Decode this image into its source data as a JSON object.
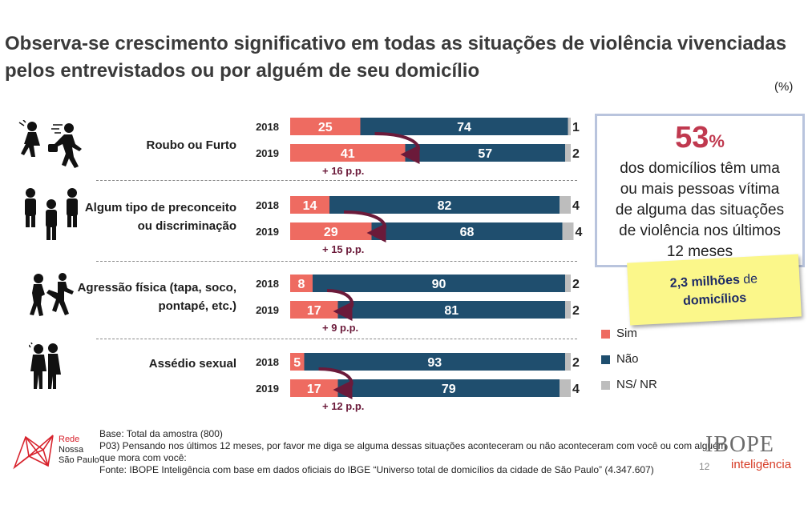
{
  "title_lines": [
    "Observa-se crescimento significativo em todas as situações de violência vivenciadas",
    "pelos entrevistados ou por alguém de seu domicílio"
  ],
  "unit": "(%)",
  "categories": [
    {
      "label_lines": [
        "Roubo ou Furto"
      ],
      "icon": "theft-icon"
    },
    {
      "label_lines": [
        "Algum tipo de preconceito",
        "ou discriminação"
      ],
      "icon": "people-group-icon"
    },
    {
      "label_lines": [
        "Agressão física (tapa, soco,",
        "pontapé, etc.)"
      ],
      "icon": "fight-icon"
    },
    {
      "label_lines": [
        "Assédio sexual"
      ],
      "icon": "harassment-icon"
    }
  ],
  "chart_data": {
    "type": "bar",
    "orientation": "horizontal",
    "stacked": true,
    "percent_scale": [
      0,
      100
    ],
    "colors": {
      "sim": "#ee6b61",
      "nao": "#1f4e6e",
      "ns": "#bdbdbd",
      "delta_arrow": "#6b1a3a"
    },
    "series_names": [
      "Sim",
      "Não",
      "NS/ NR"
    ],
    "groups": [
      {
        "category": "Roubo ou Furto",
        "rows": [
          {
            "year": "2018",
            "sim": 25,
            "nao": 74,
            "ns": 1
          },
          {
            "year": "2019",
            "sim": 41,
            "nao": 57,
            "ns": 2
          }
        ],
        "delta": "+ 16 p.p."
      },
      {
        "category": "Algum tipo de preconceito ou discriminação",
        "rows": [
          {
            "year": "2018",
            "sim": 14,
            "nao": 82,
            "ns": 4
          },
          {
            "year": "2019",
            "sim": 29,
            "nao": 68,
            "ns": 4
          }
        ],
        "delta": "+ 15 p.p."
      },
      {
        "category": "Agressão física (tapa, soco, pontapé, etc.)",
        "rows": [
          {
            "year": "2018",
            "sim": 8,
            "nao": 90,
            "ns": 2
          },
          {
            "year": "2019",
            "sim": 17,
            "nao": 81,
            "ns": 2
          }
        ],
        "delta": "+ 9 p.p."
      },
      {
        "category": "Assédio sexual",
        "rows": [
          {
            "year": "2018",
            "sim": 5,
            "nao": 93,
            "ns": 2
          },
          {
            "year": "2019",
            "sim": 17,
            "nao": 79,
            "ns": 4
          }
        ],
        "delta": "+ 12 p.p."
      }
    ]
  },
  "legend": [
    {
      "label": "Sim",
      "color": "#ee6b61"
    },
    {
      "label": "Não",
      "color": "#1f4e6e"
    },
    {
      "label": "NS/ NR",
      "color": "#bdbdbd"
    }
  ],
  "stat_box": {
    "number": "53",
    "percent_sign": "%",
    "text_lines": [
      "dos domicílios têm uma",
      "ou mais pessoas vítima",
      "de alguma das situações",
      "de violência nos últimos",
      "12 meses"
    ]
  },
  "note": {
    "bold": "2,3 milhões",
    "normal": " de",
    "bold2": "domicílios"
  },
  "footer_lines": [
    "Base: Total da amostra (800)",
    "P03) Pensando nos últimos 12 meses, por favor me diga se alguma dessas situações aconteceram ou não aconteceram com você ou com alguém",
    "que mora com você:",
    "Fonte: IBOPE Inteligência com base em dados oficiais do IBGE “Universo total de domicílios da cidade de São Paulo” (4.347.607)"
  ],
  "rede_logo": {
    "line1": "Rede",
    "line2": "Nossa",
    "line3": "São Paulo"
  },
  "ibope_logo": {
    "name": "IBOPE",
    "sub": "inteligência"
  },
  "page_number": "12"
}
